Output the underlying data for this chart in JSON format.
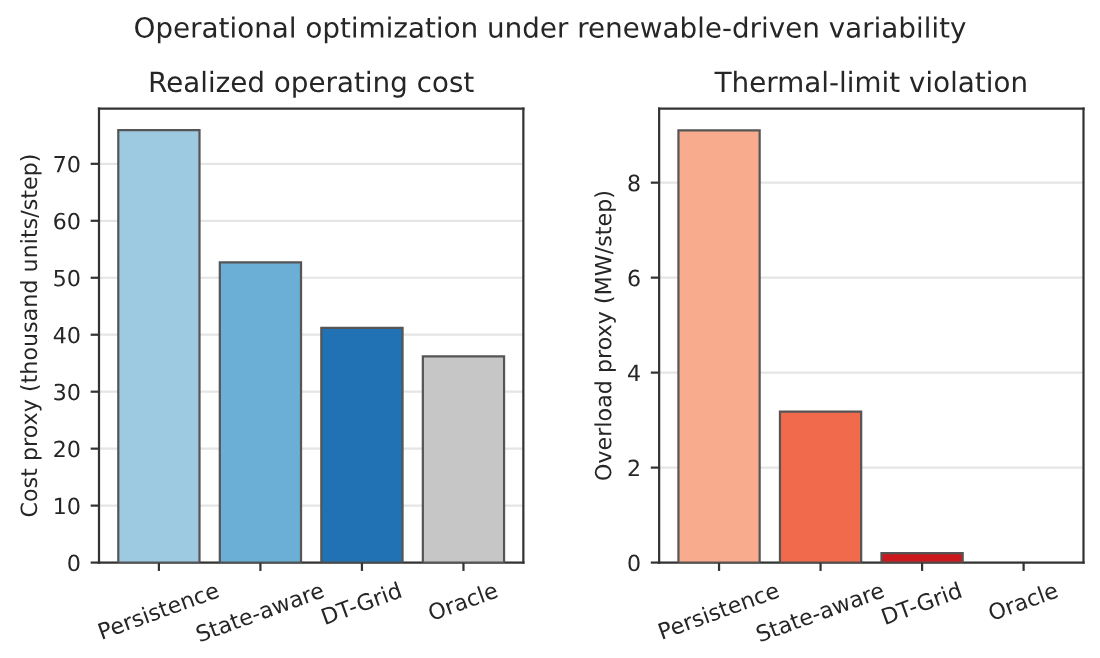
{
  "chart_data": [
    {
      "type": "bar",
      "annotations": [
        "Operational optimization under renewable-driven variability"
      ],
      "title": "Realized operating cost",
      "ylabel": "Cost proxy (thousand units/step)",
      "categories": [
        "Persistence",
        "State-aware",
        "DT-Grid",
        "Oracle"
      ],
      "values": [
        75.9,
        52.7,
        41.2,
        36.2
      ],
      "colors": [
        "#9ecae1",
        "#6baed6",
        "#2171b5",
        "#c6c6c7"
      ],
      "ylim": [
        0,
        79.7
      ],
      "yticks": [
        0,
        10,
        20,
        30,
        40,
        50,
        60,
        70
      ],
      "grid": "y"
    },
    {
      "type": "bar",
      "title": "Thermal-limit violation",
      "ylabel": "Overload proxy (MW/step)",
      "categories": [
        "Persistence",
        "State-aware",
        "DT-Grid",
        "Oracle"
      ],
      "values": [
        9.1,
        3.18,
        0.2,
        0
      ],
      "colors": [
        "#f9ac8d",
        "#f16a4b",
        "#cb181d",
        "#c6c6c7"
      ],
      "ylim": [
        0,
        9.56
      ],
      "yticks": [
        0,
        2,
        4,
        6,
        8
      ],
      "grid": "y"
    }
  ]
}
